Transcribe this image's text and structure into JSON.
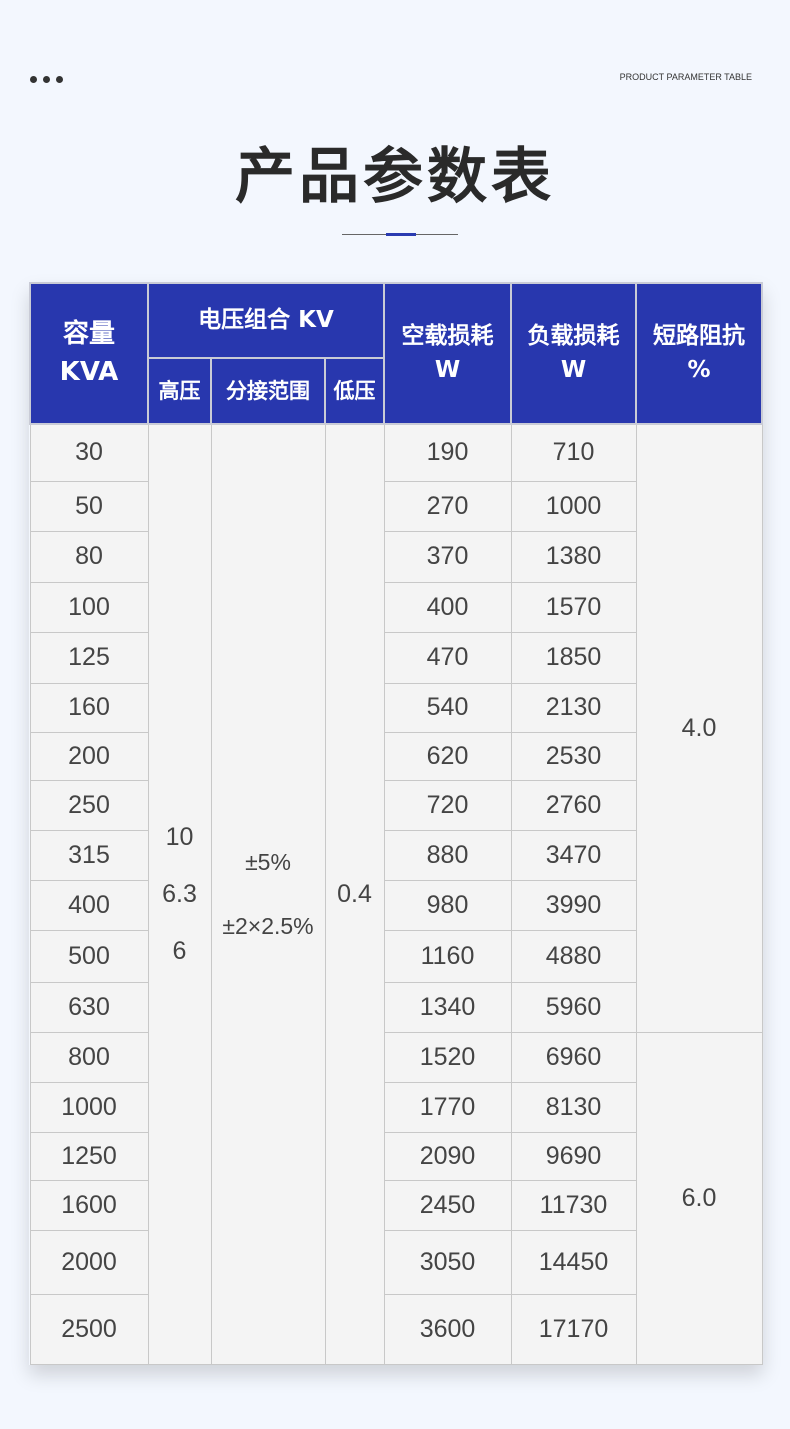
{
  "header": {
    "tag": "PRODUCT PARAMETER TABLE",
    "title": "产品参数表"
  },
  "colors": {
    "header_bg": "#2837ae",
    "cell_bg": "#f4f4f4",
    "page_bg": "#f3f7fe"
  },
  "table": {
    "headers": {
      "capacity": "容量\nKVA",
      "voltage_group": "电压组合 KV",
      "high_voltage": "高压",
      "tap_range": "分接范围",
      "low_voltage": "低压",
      "no_load_loss": "空载损耗\nW",
      "load_loss": "负载损耗\nW",
      "impedance": "短路阻抗\n%"
    },
    "high_voltage": "10\n6.3\n6",
    "tap_range": "±5%\n±2×2.5%",
    "low_voltage": "0.4",
    "impedance_groups": [
      {
        "value": "4.0",
        "rows": 12
      },
      {
        "value": "6.0",
        "rows": 6
      }
    ],
    "rows": [
      {
        "capacity": "30",
        "no_load": "190",
        "load": "710"
      },
      {
        "capacity": "50",
        "no_load": "270",
        "load": "1000"
      },
      {
        "capacity": "80",
        "no_load": "370",
        "load": "1380"
      },
      {
        "capacity": "100",
        "no_load": "400",
        "load": "1570"
      },
      {
        "capacity": "125",
        "no_load": "470",
        "load": "1850"
      },
      {
        "capacity": "160",
        "no_load": "540",
        "load": "2130"
      },
      {
        "capacity": "200",
        "no_load": "620",
        "load": "2530"
      },
      {
        "capacity": "250",
        "no_load": "720",
        "load": "2760"
      },
      {
        "capacity": "315",
        "no_load": "880",
        "load": "3470"
      },
      {
        "capacity": "400",
        "no_load": "980",
        "load": "3990"
      },
      {
        "capacity": "500",
        "no_load": "1160",
        "load": "4880"
      },
      {
        "capacity": "630",
        "no_load": "1340",
        "load": "5960"
      },
      {
        "capacity": "800",
        "no_load": "1520",
        "load": "6960"
      },
      {
        "capacity": "1000",
        "no_load": "1770",
        "load": "8130"
      },
      {
        "capacity": "1250",
        "no_load": "2090",
        "load": "9690"
      },
      {
        "capacity": "1600",
        "no_load": "2450",
        "load": "11730"
      },
      {
        "capacity": "2000",
        "no_load": "3050",
        "load": "14450"
      },
      {
        "capacity": "2500",
        "no_load": "3600",
        "load": "17170"
      }
    ]
  }
}
